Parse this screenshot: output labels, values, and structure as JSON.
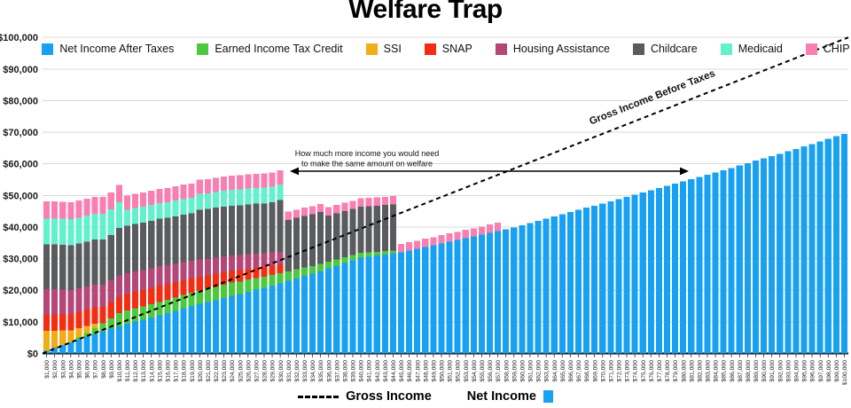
{
  "title": "Welfare Trap",
  "bottom_legend": {
    "gross_label": "Gross Income",
    "net_label": "Net Income"
  },
  "chart_data": {
    "type": "bar",
    "stacked": true,
    "title": "Welfare Trap",
    "xlabel": "",
    "ylabel": "",
    "grid": true,
    "legend_position": "top",
    "ylim": [
      0,
      100000
    ],
    "y_ticks": [
      "$0",
      "$10,000",
      "$20,000",
      "$30,000",
      "$40,000",
      "$50,000",
      "$60,000",
      "$70,000",
      "$80,000",
      "$90,000",
      "$100,000"
    ],
    "values_unit": "thousands_of_USD",
    "x_unit": "USD_gross_income",
    "x": [
      1000,
      2000,
      3000,
      4000,
      5000,
      6000,
      7000,
      8000,
      9000,
      10000,
      11000,
      12000,
      13000,
      14000,
      15000,
      16000,
      17000,
      18000,
      19000,
      20000,
      21000,
      22000,
      23000,
      24000,
      25000,
      26000,
      27000,
      28000,
      29000,
      30000,
      31000,
      32000,
      33000,
      34000,
      35000,
      36000,
      37000,
      38000,
      39000,
      40000,
      41000,
      42000,
      43000,
      44000,
      45000,
      46000,
      47000,
      48000,
      49000,
      50000,
      51000,
      52000,
      53000,
      54000,
      55000,
      56000,
      57000,
      58000,
      59000,
      60000,
      61000,
      62000,
      63000,
      64000,
      65000,
      66000,
      67000,
      68000,
      69000,
      70000,
      71000,
      72000,
      73000,
      74000,
      75000,
      76000,
      77000,
      78000,
      79000,
      80000,
      81000,
      82000,
      83000,
      84000,
      85000,
      86000,
      87000,
      88000,
      89000,
      90000,
      91000,
      92000,
      93000,
      94000,
      95000,
      96000,
      97000,
      98000,
      99000,
      100000
    ],
    "series": [
      {
        "key": "net",
        "name": "Net Income After Taxes",
        "color": "#18a0f2",
        "values": [
          0.9,
          1.8,
          2.7,
          3.5,
          4.4,
          5.3,
          6.1,
          7.0,
          7.8,
          8.7,
          9.4,
          10.1,
          10.7,
          11.4,
          12.1,
          12.8,
          13.5,
          14.3,
          15.0,
          15.7,
          16.3,
          16.9,
          17.6,
          18.2,
          18.8,
          19.5,
          20.2,
          20.8,
          21.5,
          22.2,
          23.0,
          23.7,
          24.5,
          25.2,
          26.0,
          26.9,
          27.7,
          28.6,
          29.4,
          30.3,
          30.6,
          31.0,
          31.3,
          31.7,
          32.0,
          32.6,
          33.1,
          33.7,
          34.2,
          34.8,
          35.4,
          35.9,
          36.5,
          37.0,
          37.6,
          38.2,
          38.8,
          39.3,
          39.9,
          40.5,
          41.2,
          41.9,
          42.6,
          43.3,
          44.0,
          44.7,
          45.4,
          46.1,
          46.8,
          47.5,
          48.2,
          48.9,
          49.6,
          50.3,
          51.0,
          51.7,
          52.4,
          53.1,
          53.8,
          54.5,
          55.2,
          55.9,
          56.6,
          57.3,
          58.0,
          58.7,
          59.5,
          60.2,
          61.0,
          61.7,
          62.5,
          63.2,
          64.0,
          64.7,
          65.5,
          66.3,
          67.1,
          67.9,
          68.7,
          69.5
        ]
      },
      {
        "key": "eitc",
        "name": "Earned Income Tax Credit",
        "color": "#4cc93f",
        "values": [
          0,
          0,
          0,
          0,
          0.6,
          1.2,
          1.9,
          2.6,
          3.3,
          4.0,
          4.2,
          4.2,
          4.2,
          4.2,
          4.2,
          4.2,
          4.2,
          4.2,
          4.2,
          4.2,
          4.2,
          4.2,
          4.2,
          4.2,
          4.0,
          3.9,
          3.7,
          3.5,
          3.4,
          3.2,
          3.0,
          2.9,
          2.7,
          2.5,
          2.4,
          2.2,
          2.1,
          1.9,
          1.7,
          1.6,
          1.4,
          1.2,
          1.1,
          0.9,
          0,
          0,
          0,
          0,
          0,
          0,
          0,
          0,
          0,
          0,
          0,
          0,
          0,
          0,
          0,
          0,
          0,
          0,
          0,
          0,
          0,
          0,
          0,
          0,
          0,
          0,
          0,
          0,
          0,
          0,
          0,
          0,
          0,
          0,
          0,
          0,
          0,
          0,
          0,
          0,
          0,
          0,
          0,
          0,
          0,
          0,
          0,
          0,
          0,
          0,
          0,
          0,
          0,
          0,
          0,
          0
        ]
      },
      {
        "key": "ssi",
        "name": "SSI",
        "color": "#f0ad18",
        "values": [
          6.2,
          5.4,
          4.6,
          3.8,
          3.0,
          2.2,
          1.4,
          0,
          0,
          0,
          0,
          0,
          0,
          0,
          0,
          0,
          0,
          0,
          0,
          0,
          0,
          0,
          0,
          0,
          0,
          0,
          0,
          0,
          0,
          0,
          0,
          0,
          0,
          0,
          0,
          0,
          0,
          0,
          0,
          0,
          0,
          0,
          0,
          0,
          0,
          0,
          0,
          0,
          0,
          0,
          0,
          0,
          0,
          0,
          0,
          0,
          0,
          0,
          0,
          0,
          0,
          0,
          0,
          0,
          0,
          0,
          0,
          0,
          0,
          0,
          0,
          0,
          0,
          0,
          0,
          0,
          0,
          0,
          0,
          0,
          0,
          0,
          0,
          0,
          0,
          0,
          0,
          0,
          0,
          0,
          0,
          0,
          0,
          0,
          0,
          0,
          0,
          0,
          0,
          0
        ]
      },
      {
        "key": "snap",
        "name": "SNAP",
        "color": "#f32d13",
        "values": [
          5.2,
          5.2,
          5.2,
          5.2,
          5.2,
          5.2,
          5.2,
          5.2,
          5.2,
          5.2,
          5.2,
          5.2,
          5.2,
          5.2,
          5.2,
          5.0,
          4.9,
          4.7,
          4.6,
          4.4,
          4.2,
          4.1,
          3.9,
          3.8,
          3.6,
          3.4,
          3.3,
          3.1,
          3.0,
          2.8,
          0,
          0,
          0,
          0,
          0,
          0,
          0,
          0,
          0,
          0,
          0,
          0,
          0,
          0,
          0,
          0,
          0,
          0,
          0,
          0,
          0,
          0,
          0,
          0,
          0,
          0,
          0,
          0,
          0,
          0,
          0,
          0,
          0,
          0,
          0,
          0,
          0,
          0,
          0,
          0,
          0,
          0,
          0,
          0,
          0,
          0,
          0,
          0,
          0,
          0,
          0,
          0,
          0,
          0,
          0,
          0,
          0,
          0,
          0,
          0,
          0,
          0,
          0,
          0,
          0,
          0,
          0,
          0,
          0,
          0
        ]
      },
      {
        "key": "housing",
        "name": "Housing Assistance",
        "color": "#b54778",
        "values": [
          8.0,
          7.9,
          7.7,
          7.6,
          7.4,
          7.3,
          7.2,
          7.0,
          6.9,
          6.8,
          6.6,
          6.5,
          6.3,
          6.2,
          6.1,
          5.9,
          5.8,
          5.7,
          5.5,
          5.4,
          5.2,
          5.1,
          5.0,
          4.8,
          4.7,
          4.6,
          4.4,
          4.3,
          4.1,
          4.0,
          0,
          0,
          0,
          0,
          0,
          0,
          0,
          0,
          0,
          0,
          0,
          0,
          0,
          0,
          0,
          0,
          0,
          0,
          0,
          0,
          0,
          0,
          0,
          0,
          0,
          0,
          0,
          0,
          0,
          0,
          0,
          0,
          0,
          0,
          0,
          0,
          0,
          0,
          0,
          0,
          0,
          0,
          0,
          0,
          0,
          0,
          0,
          0,
          0,
          0,
          0,
          0,
          0,
          0,
          0,
          0,
          0,
          0,
          0,
          0,
          0,
          0,
          0,
          0,
          0,
          0,
          0,
          0,
          0,
          0
        ]
      },
      {
        "key": "childcare",
        "name": "Childcare",
        "color": "#595b5e",
        "values": [
          14.2,
          14.2,
          14.2,
          14.2,
          14.2,
          14.2,
          14.2,
          14.2,
          14.2,
          15.0,
          15.0,
          15.0,
          15.0,
          15.0,
          15.0,
          15.0,
          15.0,
          15.0,
          15.0,
          15.8,
          15.8,
          15.8,
          15.8,
          15.8,
          15.8,
          15.8,
          15.8,
          15.8,
          15.8,
          16.3,
          16.3,
          16.3,
          16.3,
          16.3,
          16.3,
          14.6,
          14.6,
          14.6,
          14.6,
          14.6,
          14.6,
          14.6,
          14.6,
          14.6,
          0,
          0,
          0,
          0,
          0,
          0,
          0,
          0,
          0,
          0,
          0,
          0,
          0,
          0,
          0,
          0,
          0,
          0,
          0,
          0,
          0,
          0,
          0,
          0,
          0,
          0,
          0,
          0,
          0,
          0,
          0,
          0,
          0,
          0,
          0,
          0,
          0,
          0,
          0,
          0,
          0,
          0,
          0,
          0,
          0,
          0,
          0,
          0,
          0,
          0,
          0,
          0,
          0,
          0,
          0,
          0
        ]
      },
      {
        "key": "medicaid",
        "name": "Medicaid",
        "color": "#63f0cd",
        "values": [
          8.2,
          8.2,
          8.2,
          8.2,
          8.2,
          8.2,
          8.2,
          8.2,
          8.2,
          8.2,
          5.0,
          5.0,
          5.0,
          5.0,
          5.0,
          5.0,
          5.0,
          5.0,
          5.0,
          5.0,
          5.0,
          5.0,
          5.0,
          5.0,
          5.0,
          5.0,
          5.0,
          5.0,
          5.0,
          5.0,
          0,
          0,
          0,
          0,
          0,
          0,
          0,
          0,
          0,
          0,
          0,
          0,
          0,
          0,
          0,
          0,
          0,
          0,
          0,
          0,
          0,
          0,
          0,
          0,
          0,
          0,
          0,
          0,
          0,
          0,
          0,
          0,
          0,
          0,
          0,
          0,
          0,
          0,
          0,
          0,
          0,
          0,
          0,
          0,
          0,
          0,
          0,
          0,
          0,
          0,
          0,
          0,
          0,
          0,
          0,
          0,
          0,
          0,
          0,
          0,
          0,
          0,
          0,
          0,
          0,
          0,
          0,
          0,
          0,
          0
        ]
      },
      {
        "key": "chip",
        "name": "CHIP",
        "color": "#f97fb2",
        "values": [
          5.4,
          5.4,
          5.4,
          5.4,
          5.4,
          5.4,
          5.4,
          5.4,
          5.4,
          5.4,
          4.5,
          4.5,
          4.5,
          4.5,
          4.5,
          4.5,
          4.5,
          4.5,
          4.5,
          4.5,
          4.5,
          4.5,
          4.5,
          4.5,
          4.5,
          4.5,
          4.5,
          4.5,
          4.5,
          4.5,
          2.6,
          2.6,
          2.6,
          2.6,
          2.6,
          2.6,
          2.6,
          2.6,
          2.6,
          2.6,
          2.6,
          2.6,
          2.6,
          2.6,
          2.6,
          2.6,
          2.6,
          2.6,
          2.6,
          2.6,
          2.6,
          2.6,
          2.6,
          2.6,
          2.6,
          2.6,
          2.6,
          0,
          0,
          0,
          0,
          0,
          0,
          0,
          0,
          0,
          0,
          0,
          0,
          0,
          0,
          0,
          0,
          0,
          0,
          0,
          0,
          0,
          0,
          0,
          0,
          0,
          0,
          0,
          0,
          0,
          0,
          0,
          0,
          0,
          0,
          0,
          0,
          0,
          0,
          0,
          0,
          0,
          0,
          0
        ]
      }
    ],
    "gross_line": {
      "label": "Gross Income Before Taxes",
      "style": "dashed",
      "color": "#000000",
      "relation": "y equals gross income before taxes"
    },
    "annotation": {
      "line1": "How much more income you would need",
      "line2": "to make the same amount on welfare"
    }
  }
}
